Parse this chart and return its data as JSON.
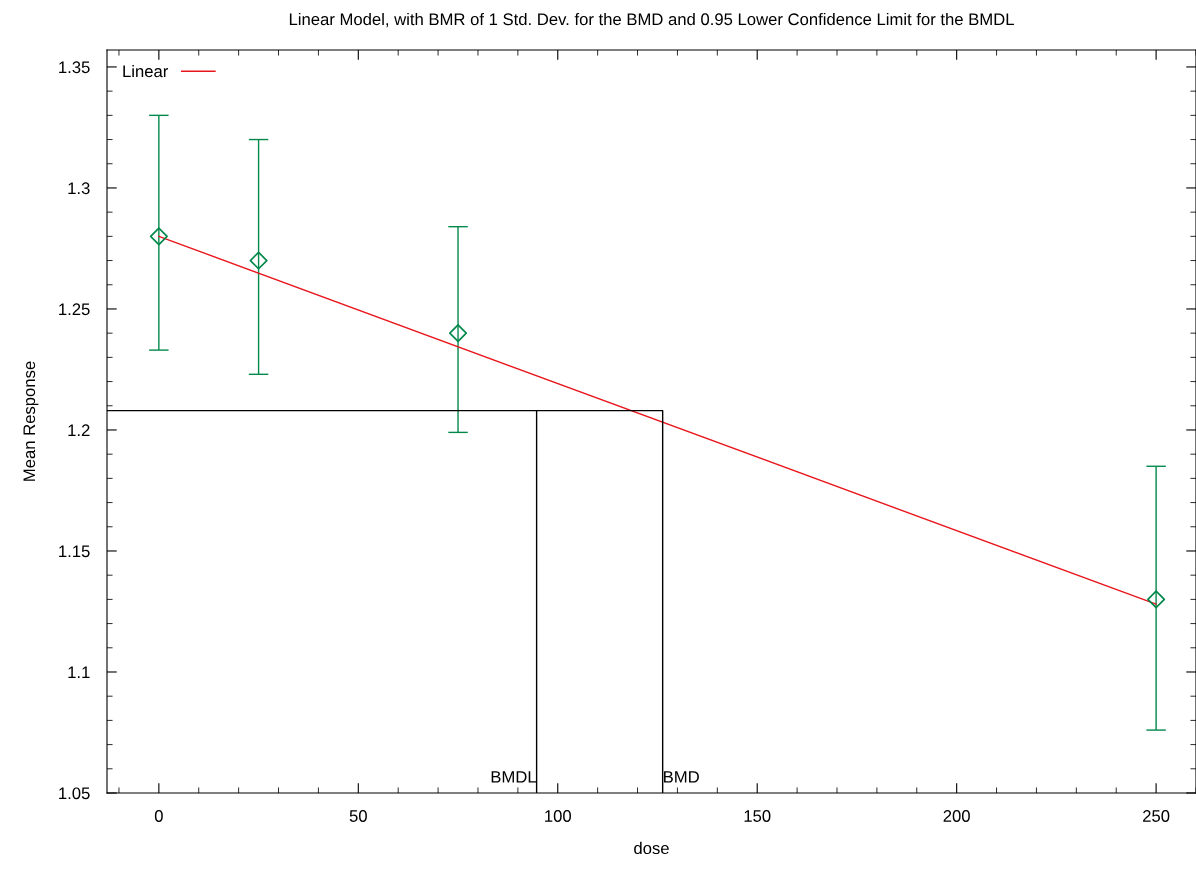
{
  "chart_data": {
    "type": "scatter",
    "title": "Linear Model, with BMR of 1 Std. Dev. for the BMD and 0.95 Lower Confidence Limit for the BMDL",
    "xlabel": "dose",
    "ylabel": "Mean Response",
    "xlim": [
      -13,
      260
    ],
    "ylim": [
      1.05,
      1.357
    ],
    "xticks": [
      0,
      50,
      100,
      150,
      200,
      250
    ],
    "yticks": [
      1.05,
      1.1,
      1.15,
      1.2,
      1.25,
      1.3,
      1.35
    ],
    "series": [
      {
        "color": "#00884a",
        "marker": "diamond",
        "x": [
          0,
          25,
          75,
          250
        ],
        "values": [
          1.28,
          1.27,
          1.24,
          1.13
        ],
        "errors": [
          [
            1.233,
            1.33
          ],
          [
            1.223,
            1.32
          ],
          [
            1.199,
            1.284
          ],
          [
            1.076,
            1.185
          ]
        ]
      },
      {
        "type": "line",
        "name": "Linear",
        "color": "#e8161c",
        "x": [
          0,
          250
        ],
        "values": [
          1.28,
          1.128
        ]
      },
      {
        "type": "line",
        "color": "#000000",
        "x": [
          -13,
          126.3,
          126.3
        ],
        "values": [
          1.208,
          1.208,
          1.05
        ]
      },
      {
        "type": "line",
        "color": "#000000",
        "x": [
          94.7,
          94.7
        ],
        "values": [
          1.208,
          1.05
        ]
      }
    ],
    "annotations": [
      {
        "text": "BMDL",
        "x": 94.7,
        "y": 1.05
      },
      {
        "text": "BMD",
        "x": 126.3,
        "y": 1.05
      }
    ],
    "legend": "top left",
    "grid": false
  }
}
